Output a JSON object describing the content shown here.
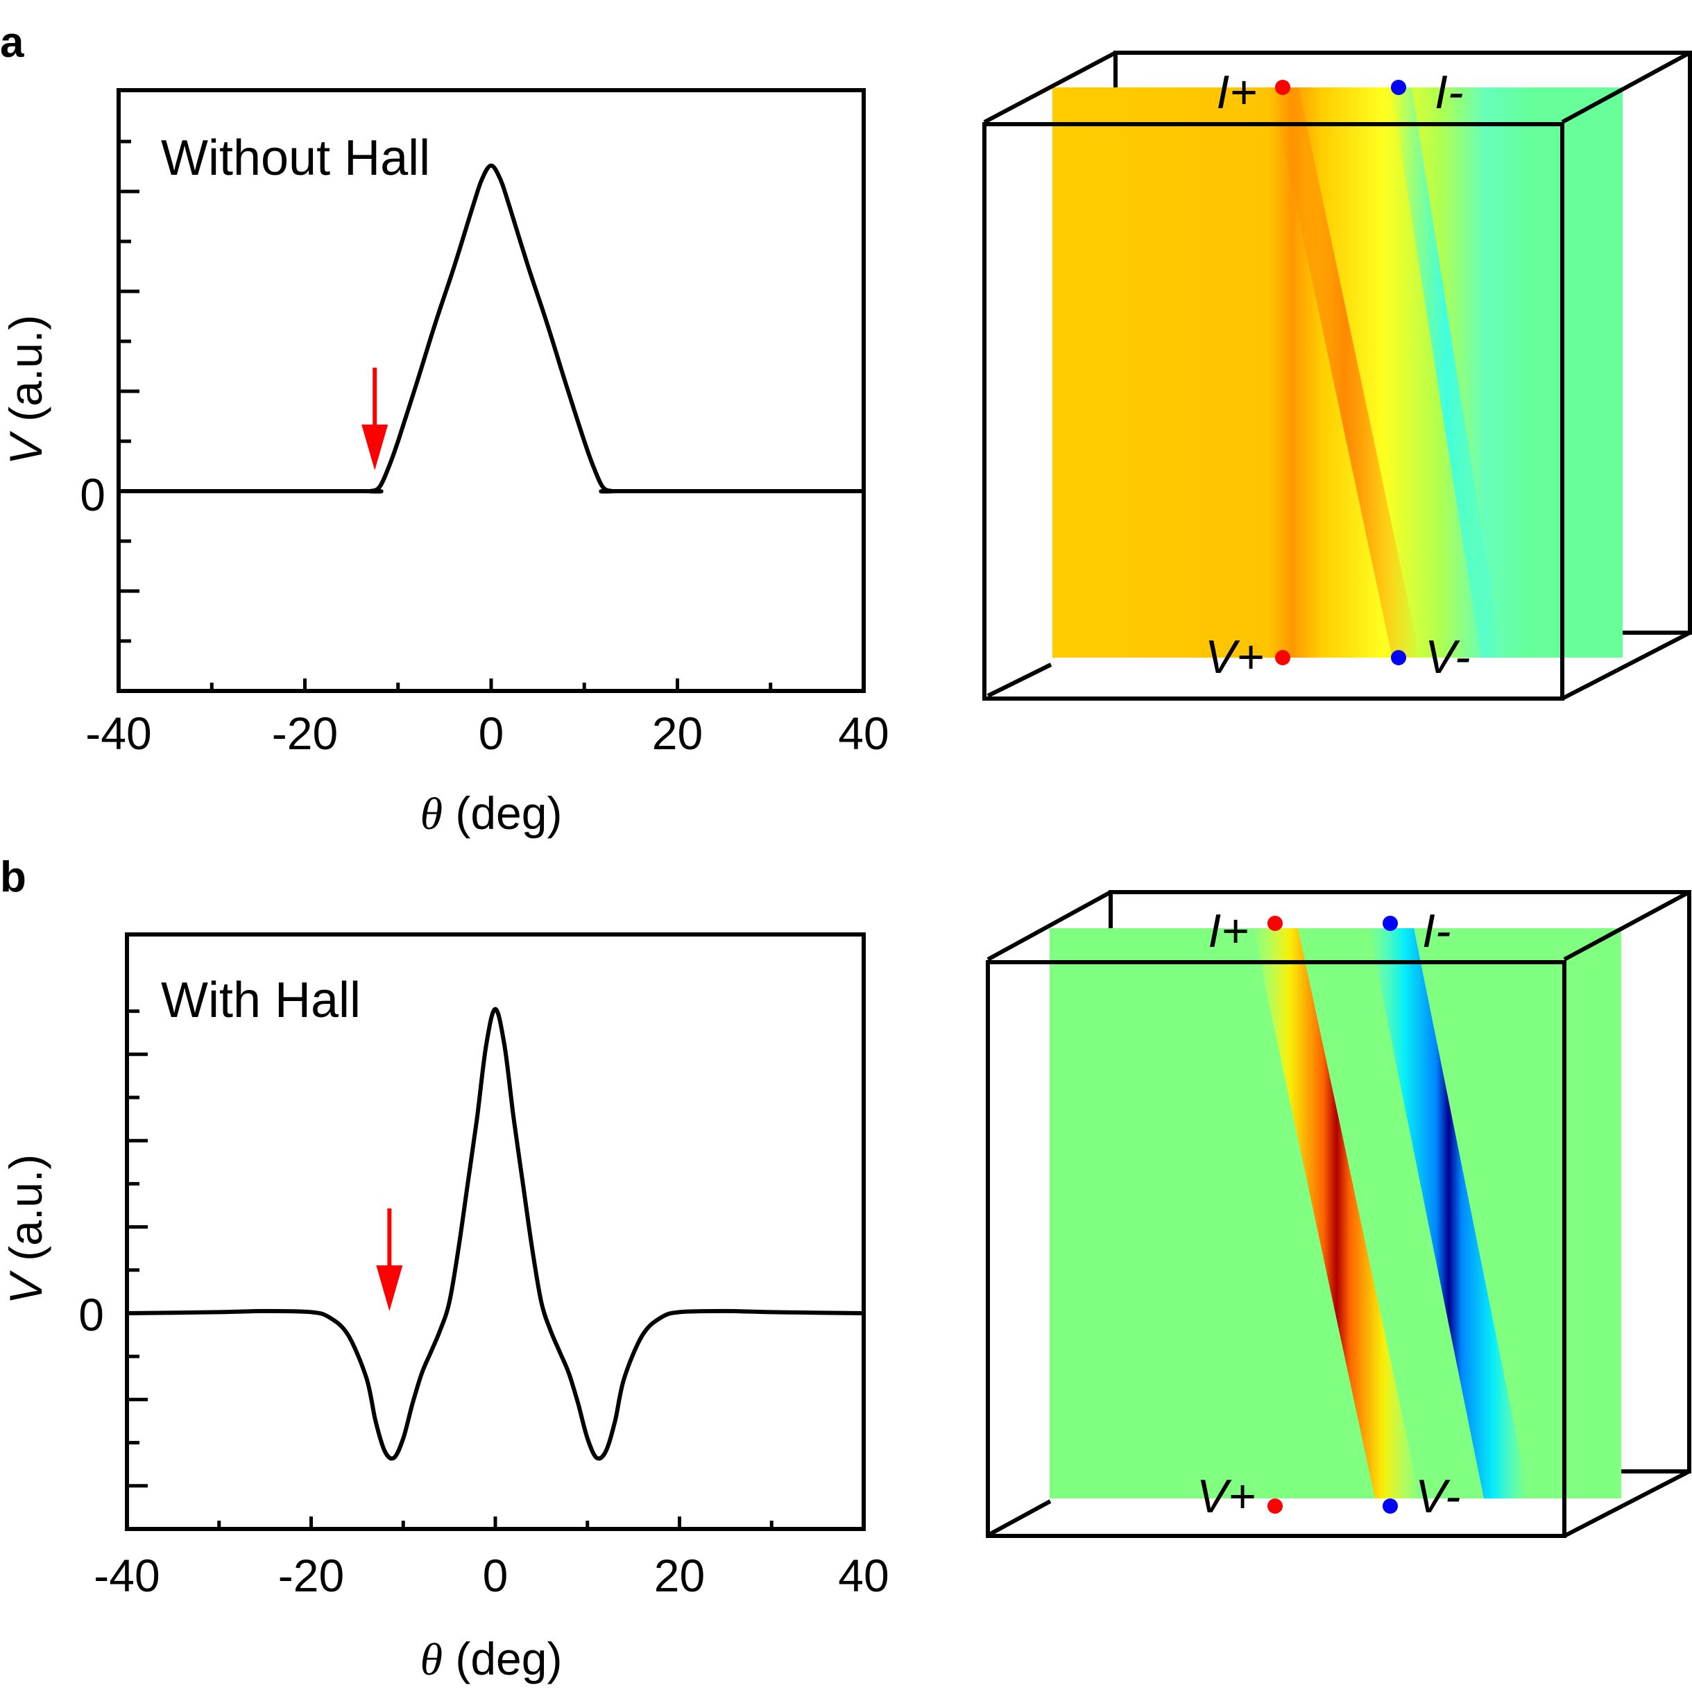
{
  "panel_labels": {
    "a": "a",
    "b": "b"
  },
  "colors": {
    "curve": "#000000",
    "arrow": "#ff0000",
    "terminal_plus": "#ff0000",
    "terminal_minus": "#0000ff",
    "map_a_left": "#ffcc00",
    "map_a_right": "#66ff99",
    "map_b_background": "#80ff80"
  },
  "chart_data": [
    {
      "type": "line",
      "panel": "a",
      "annotation": "Without Hall",
      "xlabel_symbol": "θ",
      "xlabel_unit": "(deg)",
      "ylabel_symbol": "V",
      "ylabel_unit": "(a.u.)",
      "xlim": [
        -40,
        40
      ],
      "ylim": [
        -1.0,
        2.0
      ],
      "xticks": [
        -40,
        -20,
        0,
        20,
        40
      ],
      "xtick_labels": [
        "-40",
        "-20",
        "0",
        "20",
        "40"
      ],
      "ytick_zero_label": "0",
      "arrow_x": -12.5,
      "series": [
        {
          "name": "V",
          "x": [
            -40,
            -14,
            -13,
            -12,
            -11,
            -10,
            -8,
            -6,
            -4,
            -2,
            -1,
            0,
            1,
            2,
            4,
            6,
            8,
            10,
            11,
            12,
            13,
            14,
            40
          ],
          "y": [
            0,
            0,
            0.0,
            0.02,
            0.12,
            0.25,
            0.54,
            0.84,
            1.12,
            1.42,
            1.56,
            1.63,
            1.56,
            1.42,
            1.12,
            0.84,
            0.54,
            0.25,
            0.12,
            0.02,
            0.0,
            0,
            0
          ]
        }
      ]
    },
    {
      "type": "line",
      "panel": "b",
      "annotation": "With Hall",
      "xlabel_symbol": "θ",
      "xlabel_unit": "(deg)",
      "ylabel_symbol": "V",
      "ylabel_unit": "(a.u.)",
      "xlim": [
        -40,
        40
      ],
      "ylim": [
        -1.0,
        1.5
      ],
      "xticks": [
        -40,
        -20,
        0,
        20,
        40
      ],
      "xtick_labels": [
        "-40",
        "-20",
        "0",
        "20",
        "40"
      ],
      "ytick_zero_label": "0",
      "arrow_x": -11.5,
      "series": [
        {
          "name": "V",
          "x": [
            -40,
            -30,
            -25,
            -20,
            -18,
            -16,
            -14,
            -13,
            -12,
            -11,
            -10,
            -9,
            -8,
            -7,
            -6,
            -5,
            -4,
            -3,
            -2,
            -1,
            0,
            1,
            2,
            3,
            4,
            5,
            6,
            7,
            8,
            9,
            10,
            11,
            12,
            13,
            14,
            16,
            18,
            20,
            25,
            30,
            40
          ],
          "y": [
            0,
            0.005,
            0.01,
            0.005,
            -0.02,
            -0.1,
            -0.3,
            -0.5,
            -0.64,
            -0.67,
            -0.58,
            -0.42,
            -0.28,
            -0.18,
            -0.08,
            0.05,
            0.3,
            0.6,
            0.9,
            1.24,
            1.41,
            1.24,
            0.9,
            0.6,
            0.3,
            0.05,
            -0.08,
            -0.18,
            -0.28,
            -0.42,
            -0.58,
            -0.67,
            -0.64,
            -0.5,
            -0.3,
            -0.1,
            -0.02,
            0.005,
            0.01,
            0.005,
            0
          ]
        }
      ]
    }
  ],
  "maps": {
    "a": {
      "top_plus_label": "I+",
      "top_minus_label": "I-",
      "bottom_plus_label": "V+",
      "bottom_minus_label": "V-"
    },
    "b": {
      "top_plus_label": "I+",
      "top_minus_label": "I-",
      "bottom_plus_label": "V+",
      "bottom_minus_label": "V-"
    }
  }
}
